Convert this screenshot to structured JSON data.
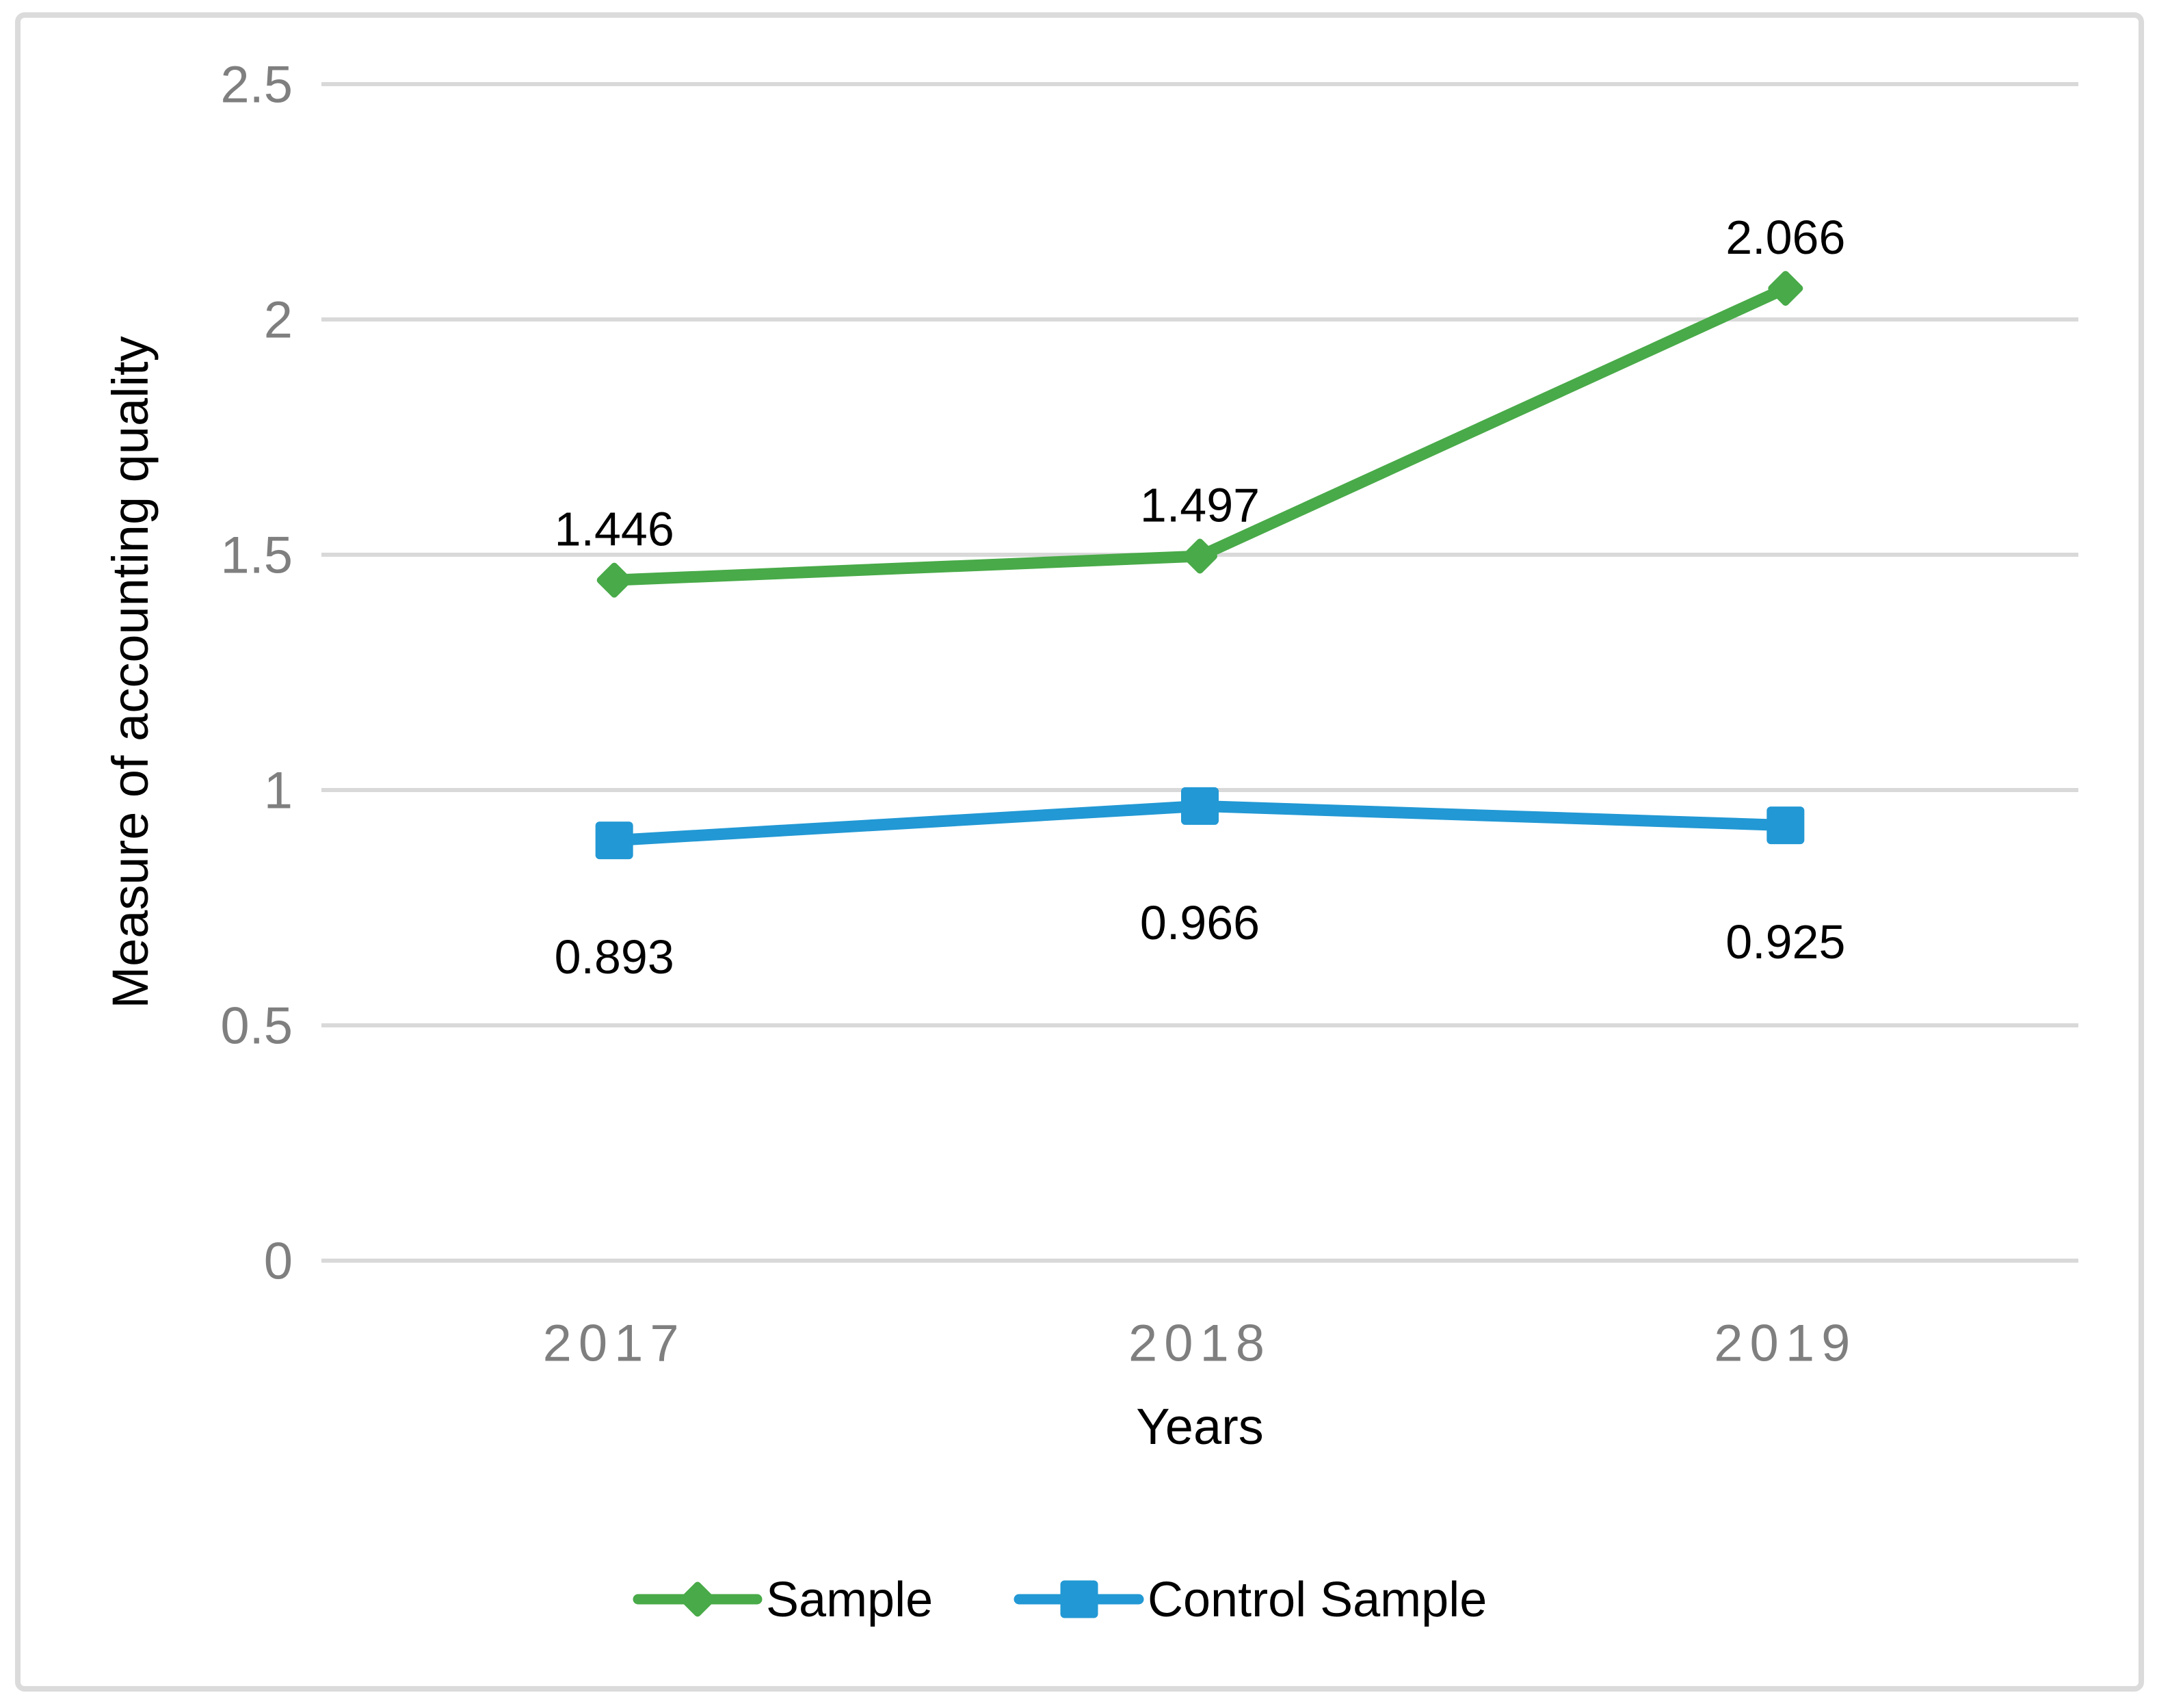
{
  "chart_data": {
    "type": "line",
    "title": "",
    "xlabel": "Years",
    "ylabel": "Measure of accounting quality",
    "categories": [
      "2017",
      "2018",
      "2019"
    ],
    "series": [
      {
        "name": "Sample",
        "color": "#48aa48",
        "marker": "diamond",
        "values": [
          1.446,
          1.497,
          2.066
        ],
        "data_labels": [
          "1.446",
          "1.497",
          "2.066"
        ],
        "label_position": "above"
      },
      {
        "name": "Control Sample",
        "color": "#2298d4",
        "marker": "square",
        "values": [
          0.893,
          0.966,
          0.925
        ],
        "data_labels": [
          "0.893",
          "0.966",
          "0.925"
        ],
        "label_position": "below"
      }
    ],
    "ylim": [
      0,
      2.5
    ],
    "ytick_step": 0.5,
    "ytick_labels": [
      "0",
      "0.5",
      "1",
      "1.5",
      "2",
      "2.5"
    ],
    "grid": "horizontal-only",
    "legend_position": "bottom",
    "colors": {
      "gridline": "#d9d9d9",
      "axis_tick_text": "#7f7f7f",
      "text": "#000000",
      "frame_border": "#dbdbdb",
      "background": "#ffffff"
    }
  }
}
